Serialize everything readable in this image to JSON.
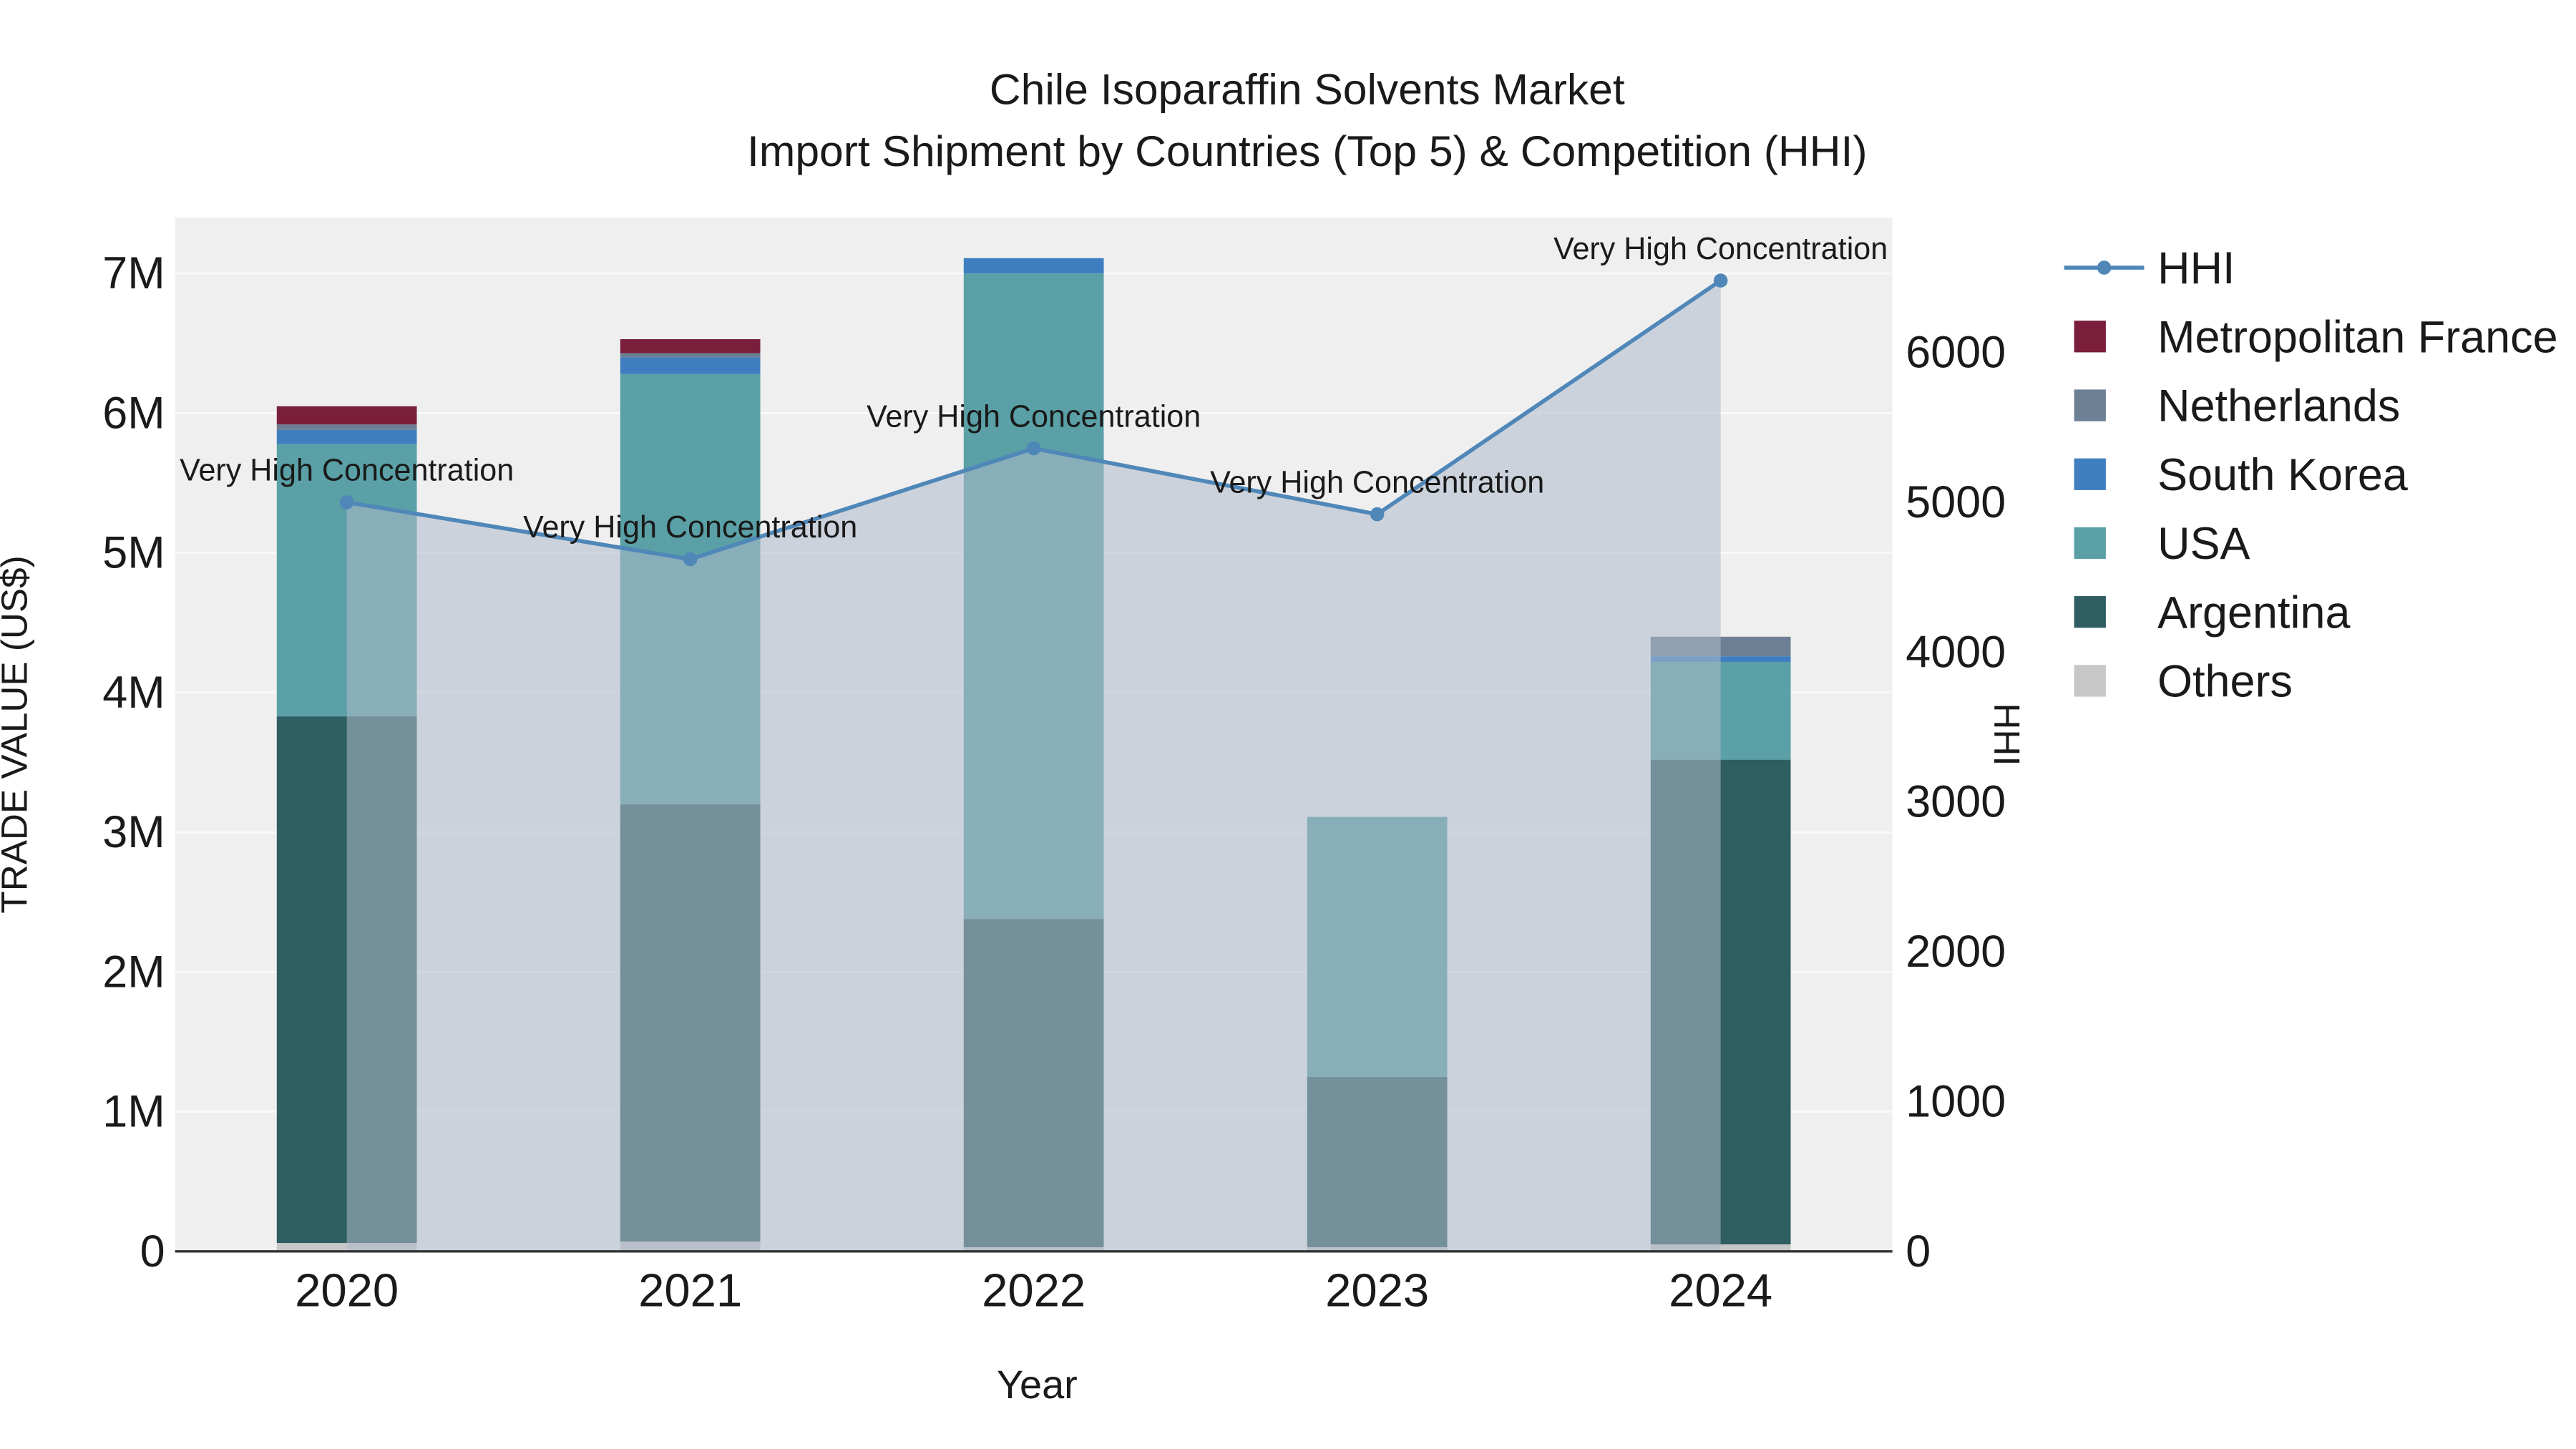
{
  "title": {
    "line1": "Chile Isoparaffin Solvents Market",
    "line2": "Import Shipment by Countries (Top 5) & Competition (HHI)"
  },
  "axes": {
    "y_left_label": "TRADE VALUE (US$)",
    "y_right_label": "HHI",
    "x_label": "Year"
  },
  "legend": [
    {
      "label": "HHI",
      "type": "line",
      "color": "#4f87b8"
    },
    {
      "label": "Metropolitan France",
      "type": "swatch",
      "color": "#7a1e3c"
    },
    {
      "label": "Netherlands",
      "type": "swatch",
      "color": "#6d7f94"
    },
    {
      "label": "South Korea",
      "type": "swatch",
      "color": "#3e7ec0"
    },
    {
      "label": "USA",
      "type": "swatch",
      "color": "#5aa0a6"
    },
    {
      "label": "Argentina",
      "type": "swatch",
      "color": "#2e5d62"
    },
    {
      "label": "Others",
      "type": "swatch",
      "color": "#c7c7c7"
    }
  ],
  "chart_data": {
    "type": "bar+line",
    "title": "Chile Isoparaffin Solvents Market — Import Shipment by Countries (Top 5) & Competition (HHI)",
    "categories": [
      "2020",
      "2021",
      "2022",
      "2023",
      "2024"
    ],
    "bar_unit": "US$ trade value, stacked by country",
    "bar_series": [
      {
        "name": "Others",
        "color": "#c7c7c7",
        "values": [
          60000,
          70000,
          30000,
          30000,
          50000
        ]
      },
      {
        "name": "Argentina",
        "color": "#2e5d62",
        "values": [
          3770000,
          3130000,
          2350000,
          1220000,
          3470000
        ]
      },
      {
        "name": "USA",
        "color": "#5aa0a6",
        "values": [
          1950000,
          3080000,
          4620000,
          1860000,
          700000
        ]
      },
      {
        "name": "South Korea",
        "color": "#3e7ec0",
        "values": [
          100000,
          120000,
          110000,
          0,
          40000
        ]
      },
      {
        "name": "Netherlands",
        "color": "#6d7f94",
        "values": [
          40000,
          30000,
          0,
          0,
          140000
        ]
      },
      {
        "name": "Metropolitan France",
        "color": "#7a1e3c",
        "values": [
          130000,
          100000,
          0,
          0,
          0
        ]
      }
    ],
    "line_series": {
      "name": "HHI",
      "color": "#4f87b8",
      "fill_color": "#aebaca",
      "fill_opacity": 0.55,
      "values": [
        5000,
        4620,
        5360,
        4920,
        6480
      ]
    },
    "annotations": [
      "Very High Concentration",
      "Very High Concentration",
      "Very High Concentration",
      "Very High Concentration",
      "Very High Concentration"
    ],
    "left_axis": {
      "max": 7400000,
      "ticks": [
        {
          "v": 0,
          "label": "0"
        },
        {
          "v": 1000000,
          "label": "1M"
        },
        {
          "v": 2000000,
          "label": "2M"
        },
        {
          "v": 3000000,
          "label": "3M"
        },
        {
          "v": 4000000,
          "label": "4M"
        },
        {
          "v": 5000000,
          "label": "5M"
        },
        {
          "v": 6000000,
          "label": "6M"
        },
        {
          "v": 7000000,
          "label": "7M"
        }
      ]
    },
    "right_axis": {
      "max": 6900,
      "ticks": [
        {
          "v": 0,
          "label": "0"
        },
        {
          "v": 1000,
          "label": "1000"
        },
        {
          "v": 2000,
          "label": "2000"
        },
        {
          "v": 3000,
          "label": "3000"
        },
        {
          "v": 4000,
          "label": "4000"
        },
        {
          "v": 5000,
          "label": "5000"
        },
        {
          "v": 6000,
          "label": "6000"
        }
      ]
    },
    "layout_hints": {
      "grid": "faint horizontal gridlines",
      "legend_position": "right",
      "plot_background": "#efefef"
    }
  }
}
